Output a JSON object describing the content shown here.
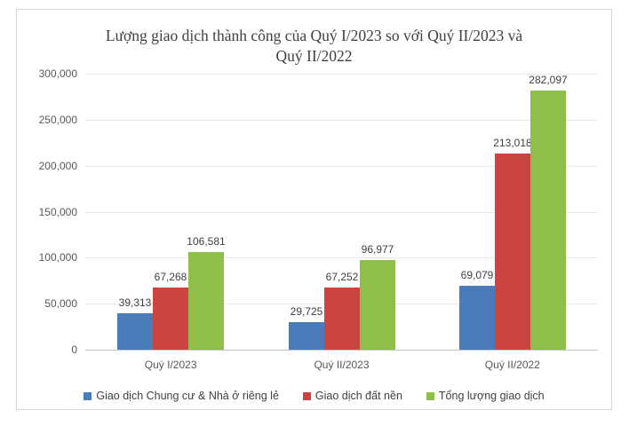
{
  "title": {
    "text": "Lượng giao dịch thành công của Quý I/2023 so với Quý II/2023 và Quý II/2022",
    "lines": [
      "Lượng giao dịch thành công của Quý I/2023 so với Quý II/2023 và",
      "Quý II/2022"
    ]
  },
  "colors": {
    "series_blue": "#4a7cbc",
    "series_red": "#ca4540",
    "series_green": "#8dbf4a",
    "gridline": "#e8e8e8",
    "axis_line": "#c3c3c3",
    "frame_border": "#d9d9d9",
    "title_text": "#404040",
    "tick_text": "#595959"
  },
  "chart_data": {
    "type": "bar",
    "title": "Lượng giao dịch thành công của Quý I/2023 so với Quý II/2023 và Quý II/2022",
    "xlabel": "",
    "ylabel": "",
    "categories": [
      "Quý I/2023",
      "Quý II/2023",
      "Quý II/2022"
    ],
    "series": [
      {
        "name": "Giao dịch Chung cư & Nhà ở riêng lẻ",
        "color": "#4a7cbc",
        "values": [
          39313,
          29725,
          69079
        ],
        "labels": [
          "39,313",
          "29,725",
          "69,079"
        ]
      },
      {
        "name": "Giao dịch đất nền",
        "color": "#ca4540",
        "values": [
          67268,
          67252,
          213018
        ],
        "labels": [
          "67,268",
          "67,252",
          "213,018"
        ]
      },
      {
        "name": "Tổng lượng giao dịch",
        "color": "#8dbf4a",
        "values": [
          106581,
          96977,
          282097
        ],
        "labels": [
          "106,581",
          "96,977",
          "282,097"
        ]
      }
    ],
    "ylim": [
      0,
      300000
    ],
    "ytick_step": 50000,
    "ytick_labels": [
      "0",
      "50,000",
      "100,000",
      "150,000",
      "200,000",
      "250,000",
      "300,000"
    ],
    "grid": true,
    "legend_position": "bottom"
  }
}
